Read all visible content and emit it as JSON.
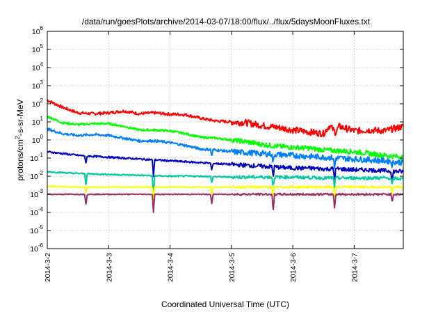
{
  "chart_data": {
    "type": "line",
    "title": "/data/run/goesPlots/archive/2014-03-07/18:00/flux/../flux/5daysMoonFluxes.txt",
    "xlabel": "Coordinated Universal Time (UTC)",
    "ylabel": {
      "base": "protons/cm",
      "sup": "2",
      "rest": "-s-sr-MeV"
    },
    "x_ticks": [
      "2014-3-2",
      "2014-3-3",
      "2014-3-4",
      "2014-3-5",
      "2014-3-6",
      "2014-3-7"
    ],
    "xlim_days": [
      0,
      5.8
    ],
    "y_scale": "log",
    "y_ticks": [
      {
        "base": "10",
        "exp": "-6"
      },
      {
        "base": "10",
        "exp": "-5"
      },
      {
        "base": "10",
        "exp": "-4"
      },
      {
        "base": "10",
        "exp": "-3"
      },
      {
        "base": "10",
        "exp": "-2"
      },
      {
        "base": "10",
        "exp": "-1"
      },
      {
        "base": "10",
        "exp": "0"
      },
      {
        "base": "10",
        "exp": "1"
      },
      {
        "base": "10",
        "exp": "2"
      },
      {
        "base": "10",
        "exp": "3"
      },
      {
        "base": "10",
        "exp": "4"
      },
      {
        "base": "10",
        "exp": "5"
      },
      {
        "base": "10",
        "exp": "6"
      }
    ],
    "ylim_log10": [
      -6,
      6
    ],
    "grid": true,
    "legend": "none",
    "series": [
      {
        "color": "#ff0000",
        "x": [
          0,
          0.25,
          0.5,
          0.75,
          1.0,
          1.25,
          1.5,
          1.75,
          2.0,
          2.25,
          2.5,
          2.75,
          3.0,
          3.25,
          3.5,
          3.75,
          4.0,
          4.25,
          4.5,
          4.6,
          4.7,
          4.75,
          5.0,
          5.25,
          5.5,
          5.8
        ],
        "log10_values": [
          2.2,
          1.8,
          1.5,
          1.45,
          1.5,
          1.6,
          1.45,
          1.5,
          1.42,
          1.4,
          1.2,
          1.05,
          1.0,
          0.95,
          0.8,
          0.7,
          0.55,
          0.45,
          0.35,
          0.8,
          0.4,
          0.75,
          0.5,
          0.55,
          0.5,
          0.75
        ]
      },
      {
        "color": "#00ff00",
        "x": [
          0,
          0.25,
          0.5,
          0.75,
          1.0,
          1.25,
          1.5,
          1.75,
          2.0,
          2.25,
          2.5,
          2.75,
          3.0,
          3.25,
          3.5,
          3.75,
          4.0,
          4.25,
          4.5,
          4.75,
          5.0,
          5.25,
          5.5,
          5.8
        ],
        "log10_values": [
          1.3,
          0.95,
          0.85,
          0.9,
          0.9,
          0.75,
          0.55,
          0.55,
          0.5,
          0.35,
          0.15,
          0.1,
          0.0,
          -0.1,
          -0.25,
          -0.35,
          -0.4,
          -0.45,
          -0.55,
          -0.6,
          -0.65,
          -0.75,
          -0.85,
          -0.95
        ]
      },
      {
        "color": "#0080ff",
        "x": [
          0,
          0.25,
          0.5,
          0.75,
          1.0,
          1.25,
          1.5,
          1.75,
          2.0,
          2.25,
          2.5,
          2.75,
          3.0,
          3.25,
          3.5,
          3.75,
          4.0,
          4.25,
          4.5,
          4.75,
          5.0,
          5.25,
          5.5,
          5.8
        ],
        "log10_values": [
          0.6,
          0.35,
          0.25,
          0.3,
          0.25,
          0.1,
          -0.05,
          -0.05,
          -0.15,
          -0.3,
          -0.5,
          -0.55,
          -0.65,
          -0.7,
          -0.75,
          -0.8,
          -0.85,
          -0.9,
          -0.95,
          -1.0,
          -1.05,
          -1.1,
          -1.15,
          -1.25
        ]
      },
      {
        "color": "#0000c0",
        "x": [
          0,
          0.25,
          0.5,
          0.75,
          1.0,
          1.25,
          1.5,
          1.75,
          2.0,
          2.25,
          2.5,
          2.75,
          3.0,
          3.25,
          3.5,
          3.75,
          4.0,
          4.25,
          4.5,
          4.75,
          5.0,
          5.25,
          5.5,
          5.8
        ],
        "log10_values": [
          -0.65,
          -0.75,
          -0.85,
          -0.9,
          -0.95,
          -1.0,
          -1.05,
          -1.1,
          -1.15,
          -1.2,
          -1.25,
          -1.3,
          -1.35,
          -1.4,
          -1.45,
          -1.5,
          -1.55,
          -1.55,
          -1.6,
          -1.6,
          -1.65,
          -1.65,
          -1.7,
          -1.75
        ]
      },
      {
        "color": "#00c8a0",
        "x": [
          0,
          0.5,
          1.0,
          1.5,
          2.0,
          2.5,
          3.0,
          3.5,
          4.0,
          4.5,
          5.0,
          5.5,
          5.8
        ],
        "log10_values": [
          -1.75,
          -1.85,
          -1.9,
          -1.95,
          -2.0,
          -2.0,
          -2.05,
          -2.05,
          -2.05,
          -2.1,
          -2.1,
          -2.1,
          -2.15
        ]
      },
      {
        "color": "#ffff00",
        "x": [
          0,
          0.5,
          1.0,
          1.5,
          2.0,
          2.5,
          3.0,
          3.5,
          4.0,
          4.5,
          5.0,
          5.5,
          5.8
        ],
        "log10_values": [
          -2.55,
          -2.6,
          -2.6,
          -2.6,
          -2.6,
          -2.6,
          -2.6,
          -2.6,
          -2.6,
          -2.6,
          -2.6,
          -2.6,
          -2.6
        ]
      },
      {
        "color": "#9a3060",
        "x": [
          0,
          0.5,
          1.0,
          1.5,
          2.0,
          2.5,
          3.0,
          3.5,
          4.0,
          4.5,
          5.0,
          5.5,
          5.8
        ],
        "log10_values": [
          -3.0,
          -3.0,
          -3.0,
          -3.0,
          -3.0,
          -3.0,
          -3.0,
          -3.0,
          -3.0,
          -3.0,
          -3.0,
          -3.0,
          -3.0
        ]
      }
    ],
    "dips": [
      {
        "x": 0.63,
        "log10_values": [
          null,
          null,
          null,
          -1.35,
          -2.5,
          -2.9,
          -3.6
        ]
      },
      {
        "x": 1.73,
        "log10_values": [
          null,
          null,
          null,
          -2.0,
          -3.1,
          -3.3,
          -4.0
        ]
      },
      {
        "x": 2.68,
        "log10_values": [
          null,
          null,
          -0.9,
          -1.7,
          -2.4,
          -3.0,
          -3.6
        ]
      },
      {
        "x": 3.68,
        "log10_values": [
          null,
          null,
          -1.3,
          -2.0,
          -2.6,
          -3.1,
          -4.0
        ]
      },
      {
        "x": 4.68,
        "log10_values": [
          null,
          null,
          -1.6,
          -2.2,
          -2.6,
          -3.1,
          -3.8
        ]
      },
      {
        "x": 5.62,
        "log10_values": [
          null,
          null,
          -1.4,
          -2.3,
          -2.5,
          -3.0,
          -3.4
        ]
      }
    ]
  }
}
